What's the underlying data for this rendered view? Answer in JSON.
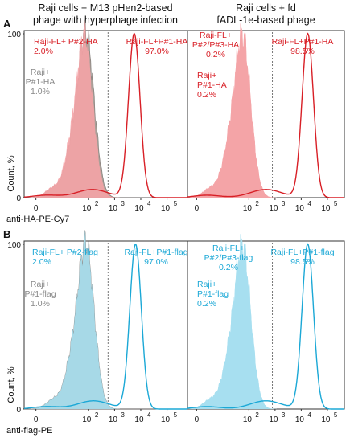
{
  "figure": {
    "colors": {
      "red": "#d81f26",
      "red_fill": "#f4a3a6",
      "cyan": "#1ba8d6",
      "cyan_fill": "#a6dff0",
      "gray_fill": "#9a8e86",
      "gray_text": "#888888"
    }
  },
  "chart_data": [
    {
      "type": "histogram",
      "panel": "A",
      "group_headers": [
        "Raji cells + M13 pHen2-based phage with hyperphage infection",
        "Raji cells + fd fADL-1e-based phage"
      ],
      "header_lines": [
        [
          "Raji cells + M13 pHen2-based",
          "phage with hyperphage infection"
        ],
        [
          "Raji cells + fd",
          "fADL-1e-based phage"
        ]
      ],
      "xlabel": "anti-HA-PE-Cy7",
      "ylabel": "Count, %",
      "x_ticks": [
        "0",
        "10",
        "2",
        "10",
        "3",
        "10",
        "4",
        "10",
        "5"
      ],
      "x_tick_values": [
        0,
        2,
        3,
        4,
        5
      ],
      "y_ticks": [
        "0",
        "100"
      ],
      "ylim": [
        0,
        100
      ],
      "subplots": [
        {
          "series": [
            {
              "name": "Raji+ P#1-HA",
              "style": "gray-filled",
              "peak_log": 1.9,
              "percent": "1.0%",
              "label_lines": [
                "Raji+",
                "P#1-HA"
              ]
            },
            {
              "name": "Raji-FL+ P#2-HA",
              "style": "red-filled",
              "peak_log": 1.85,
              "percent": "2.0%",
              "label_lines": [
                "Raji-FL+ P#2-HA"
              ]
            },
            {
              "name": "Raji-FL+P#1-HA",
              "style": "red-line",
              "peak_log": 3.75,
              "percent": "97.0%",
              "label_lines": [
                "Raji-FL+P#1-HA"
              ]
            }
          ]
        },
        {
          "series": [
            {
              "name": "Raji-FL+ P#2/P#3-HA",
              "style": "red-filled",
              "peak_log": 1.75,
              "percent": "0.2%",
              "label_lines": [
                "Raji-FL+",
                "P#2/P#3-HA"
              ]
            },
            {
              "name": "Raji+ P#1-HA",
              "style": "red-filled",
              "peak_log": 1.75,
              "percent": "0.2%",
              "label_lines": [
                "Raji+",
                "P#1-HA"
              ]
            },
            {
              "name": "Raji-FL+P#1-HA",
              "style": "red-line",
              "peak_log": 4.25,
              "percent": "98.5%",
              "label_lines": [
                "Raji-FL+P#1-HA"
              ]
            }
          ]
        }
      ]
    },
    {
      "type": "histogram",
      "panel": "B",
      "xlabel": "anti-flag-PE",
      "ylabel": "Count, %",
      "x_ticks": [
        "0",
        "10",
        "2",
        "10",
        "3",
        "10",
        "4",
        "10",
        "5"
      ],
      "x_tick_values": [
        0,
        2,
        3,
        4,
        5
      ],
      "y_ticks": [
        "0",
        "100"
      ],
      "ylim": [
        0,
        100
      ],
      "subplots": [
        {
          "series": [
            {
              "name": "Raji+ P#1-flag",
              "style": "gray-filled",
              "peak_log": 1.9,
              "percent": "1.0%",
              "label_lines": [
                "Raji+",
                "P#1-flag"
              ]
            },
            {
              "name": "Raji-FL+ P#2-flag",
              "style": "cyan-filled",
              "peak_log": 1.9,
              "percent": "2.0%",
              "label_lines": [
                "Raji-FL+ P#2-flag"
              ]
            },
            {
              "name": "Raji-FL+P#1-flag",
              "style": "cyan-line",
              "peak_log": 3.8,
              "percent": "97.0%",
              "label_lines": [
                "Raji-FL+P#1-flag"
              ]
            }
          ]
        },
        {
          "series": [
            {
              "name": "Raji-FL+ P#2/P#3-flag",
              "style": "cyan-filled",
              "peak_log": 1.75,
              "percent": "0.2%",
              "label_lines": [
                "Raji-FL+",
                "P#2/P#3-flag"
              ]
            },
            {
              "name": "Raji+ P#1-flag",
              "style": "cyan-filled",
              "peak_log": 1.75,
              "percent": "0.2%",
              "label_lines": [
                "Raji+",
                "P#1-flag"
              ]
            },
            {
              "name": "Raji-FL+P#1-flag",
              "style": "cyan-line",
              "peak_log": 4.25,
              "percent": "98.5%",
              "label_lines": [
                "Raji-FL+P#1-flag"
              ]
            }
          ]
        }
      ]
    }
  ]
}
